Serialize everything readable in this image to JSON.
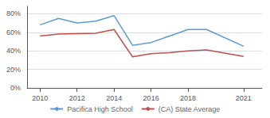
{
  "chart_data": {
    "type": "line",
    "x": [
      2010,
      2011,
      2012,
      2013,
      2014,
      2015,
      2016,
      2017,
      2018,
      2019,
      2021
    ],
    "series": [
      {
        "name": "Pacifica High School",
        "color": "#5b9bd5",
        "values": [
          0.68,
          0.75,
          0.7,
          0.72,
          0.78,
          0.46,
          0.49,
          0.56,
          0.63,
          0.63,
          0.45
        ]
      },
      {
        "name": "(CA) State Average",
        "color": "#c0504d",
        "values": [
          0.56,
          0.58,
          0.585,
          0.59,
          0.63,
          0.335,
          0.37,
          0.38,
          0.4,
          0.41,
          0.34
        ]
      }
    ],
    "xlim": [
      2009.3,
      2022.0
    ],
    "xticks": [
      2010,
      2012,
      2014,
      2016,
      2018,
      2021
    ],
    "ylim": [
      0,
      0.88
    ],
    "yticks": [
      {
        "value": 0.0,
        "label": "0%"
      },
      {
        "value": 0.2,
        "label": "20%"
      },
      {
        "value": 0.4,
        "label": "40%"
      },
      {
        "value": 0.6,
        "label": "60%"
      },
      {
        "value": 0.8,
        "label": "80%"
      }
    ],
    "grid": true,
    "legend": "bottom"
  }
}
